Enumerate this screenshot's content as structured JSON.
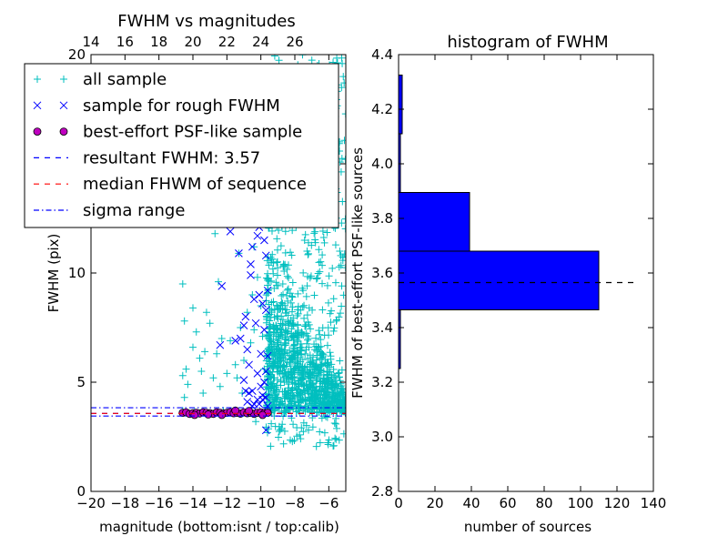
{
  "chart_data": [
    {
      "type": "scatter",
      "title": "FWHM vs magnitudes",
      "xlabel": "magnitude (bottom:isnt / top:calib)",
      "ylabel": "FWHM (pix)",
      "xlim": [
        -20,
        -5
      ],
      "ylim": [
        0,
        20
      ],
      "x_ticks": [
        -20,
        -18,
        -16,
        -14,
        -12,
        -10,
        -8,
        -6
      ],
      "x_tick_labels": [
        "−20",
        "−18",
        "−16",
        "−14",
        "−12",
        "−10",
        "−8",
        "−6"
      ],
      "y_ticks": [
        0,
        5,
        10,
        15,
        20
      ],
      "y_tick_labels": [
        "0",
        "5",
        "10",
        "15",
        "20"
      ],
      "top_x_ticks": [
        14,
        16,
        18,
        20,
        22,
        24,
        26
      ],
      "top_x_tick_labels": [
        "14",
        "16",
        "18",
        "20",
        "22",
        "24",
        "26"
      ],
      "top_x_offset": 34.0,
      "legend": {
        "position": "upper-left",
        "entries": [
          {
            "marker": "plus",
            "color": "#00bfbf",
            "label": "all sample"
          },
          {
            "marker": "x",
            "color": "#0000ff",
            "label": "sample for rough FWHM"
          },
          {
            "marker": "circle",
            "color": "#bf00bf",
            "label": "best-effort PSF-like sample"
          },
          {
            "marker": "dashed",
            "color": "#0000ff",
            "label": "resultant FWHM: 3.57"
          },
          {
            "marker": "dashed",
            "color": "#ff0000",
            "label": "median FHWM of sequence"
          },
          {
            "marker": "dashdot",
            "color": "#0000ff",
            "label": "sigma range"
          }
        ]
      },
      "hlines": [
        {
          "y": 3.57,
          "style": "dashed",
          "color": "#0000ff"
        },
        {
          "y": 3.57,
          "style": "dashed",
          "color": "#ff0000"
        },
        {
          "y": 3.83,
          "style": "dashdot",
          "color": "#0000ff"
        },
        {
          "y": 3.45,
          "style": "dashdot",
          "color": "#0000ff"
        }
      ],
      "series": [
        {
          "name": "all sample",
          "marker": "plus",
          "color": "#00bfbf",
          "x": [
            -14.6,
            -14.4,
            -14.5,
            -14.3,
            -14.0,
            -13.8,
            -13.5,
            -13.3,
            -13.0,
            -12.8,
            -12.6,
            -12.3,
            -12.0,
            -11.8,
            -11.5,
            -11.2,
            -11.0,
            -10.8,
            -10.6,
            -10.4,
            -10.2,
            -10.0,
            -9.9,
            -9.8,
            -9.6,
            -14.6,
            -13.2,
            -12.5,
            -11.8,
            -11.0,
            -14.4,
            -12.9,
            -11.9,
            -10.9,
            -10.1,
            -14.0,
            -12.7,
            -11.3,
            -10.4,
            -14.6,
            -13.9,
            -13.1,
            -12.2,
            -11.6,
            -10.7,
            -13.4,
            -11.4,
            -14.5,
            -13.6,
            -12.4,
            -11.1,
            -10.3,
            -12.0,
            -13.0,
            -10.5
          ],
          "y": [
            5.3,
            5.6,
            7.8,
            4.9,
            6.6,
            7.3,
            5.5,
            6.4,
            7.7,
            5.2,
            6.3,
            7.0,
            5.4,
            6.9,
            5.8,
            7.5,
            6.0,
            8.2,
            6.8,
            7.4,
            9.8,
            8.5,
            7.1,
            5.6,
            6.4,
            9.5,
            8.2,
            9.6,
            13.7,
            14.2,
            14.7,
            13.3,
            13.5,
            14.8,
            12.8,
            8.4,
            11.8,
            10.9,
            11.2,
            3.7,
            3.65,
            3.6,
            3.7,
            3.65,
            3.7,
            4.5,
            5.2,
            4.3,
            6.1,
            4.8,
            4.5,
            3.2,
            15.0,
            12.5,
            9.0
          ]
        },
        {
          "name": "sample for rough FWHM",
          "marker": "x",
          "color": "#0000ff",
          "x": [
            -12.3,
            -11.5,
            -11.2,
            -11.0,
            -10.8,
            -10.7,
            -10.6,
            -10.5,
            -10.4,
            -10.3,
            -10.2,
            -10.1,
            -10.0,
            -9.9,
            -9.8,
            -9.7,
            -9.6,
            -10.9,
            -10.3,
            -10.0,
            -9.8,
            -9.7,
            -11.8,
            -11.3,
            -10.6,
            -10.1,
            -9.9,
            -9.7,
            -10.5,
            -10.2,
            -12.4,
            -11.0,
            -10.7,
            -10.4,
            -9.9,
            -9.6,
            -10.8,
            -10.0,
            -9.7,
            -11.1,
            -10.3,
            -9.8,
            -10.6,
            -10.0,
            -9.7,
            -10.9,
            -10.2,
            -9.8,
            -9.6,
            -10.5,
            -10.1,
            -9.9,
            -9.7,
            -11.5,
            -10.4
          ],
          "y": [
            9.4,
            6.9,
            7.0,
            7.6,
            6.5,
            5.8,
            9.9,
            11.2,
            12.6,
            13.0,
            11.7,
            12.1,
            13.8,
            12.9,
            11.5,
            10.8,
            9.2,
            8.0,
            7.7,
            6.3,
            7.4,
            5.5,
            11.9,
            10.9,
            10.4,
            9.0,
            8.6,
            8.3,
            4.6,
            4.2,
            6.7,
            5.1,
            4.5,
            4.0,
            4.4,
            3.9,
            4.1,
            4.8,
            4.3,
            13.9,
            14.6,
            13.2,
            12.3,
            15.5,
            14.2,
            4.6,
            5.4,
            5.0,
            6.2,
            3.9,
            4.0,
            4.2,
            2.8,
            12.5,
            8.8
          ]
        },
        {
          "name": "best-effort PSF-like sample",
          "marker": "circle",
          "color": "#bf00bf",
          "x": [
            -14.6,
            -14.4,
            -14.2,
            -14.0,
            -13.8,
            -13.6,
            -13.4,
            -13.2,
            -13.0,
            -12.8,
            -12.6,
            -12.4,
            -12.2,
            -12.0,
            -11.8,
            -11.6,
            -11.4,
            -11.2,
            -11.0,
            -10.8,
            -10.6,
            -10.4,
            -10.2,
            -10.0,
            -9.8,
            -9.6,
            -13.9,
            -13.1,
            -12.3,
            -11.5,
            -10.7,
            -9.9
          ],
          "y": [
            3.6,
            3.62,
            3.55,
            3.58,
            3.6,
            3.57,
            3.62,
            3.6,
            3.58,
            3.55,
            3.62,
            3.6,
            3.57,
            3.6,
            3.63,
            3.58,
            3.6,
            3.56,
            3.62,
            3.58,
            3.6,
            3.55,
            3.6,
            3.62,
            3.58,
            3.6,
            3.5,
            3.52,
            3.5,
            3.7,
            3.68,
            3.5
          ]
        }
      ],
      "dense_cloud": {
        "series": "all sample",
        "x_range": [
          -9.7,
          -5.0
        ],
        "y_range": [
          2.0,
          20.0
        ],
        "description_shape": "dense cluster centered near magnitude -8, FWHM 3.5-10, tailing off to higher magnitudes"
      }
    },
    {
      "type": "bar",
      "orientation": "horizontal",
      "title": "histogram of FWHM",
      "xlabel": "number of sources",
      "ylabel": "FWHM of best-effort PSF-like sources",
      "xlim": [
        0,
        140
      ],
      "ylim": [
        2.8,
        4.4
      ],
      "x_ticks": [
        0,
        20,
        40,
        60,
        80,
        100,
        120,
        140
      ],
      "x_tick_labels": [
        "0",
        "20",
        "40",
        "60",
        "80",
        "100",
        "120",
        "140"
      ],
      "y_ticks": [
        2.8,
        3.0,
        3.2,
        3.4,
        3.6,
        3.8,
        4.0,
        4.2,
        4.4
      ],
      "y_tick_labels": [
        "2.8",
        "3.0",
        "3.2",
        "3.4",
        "3.6",
        "3.8",
        "4.0",
        "4.2",
        "4.4"
      ],
      "bar_color": "#0000ff",
      "bins": [
        {
          "lo": 3.25,
          "hi": 3.465,
          "count": 1
        },
        {
          "lo": 3.465,
          "hi": 3.68,
          "count": 110
        },
        {
          "lo": 3.68,
          "hi": 3.895,
          "count": 39
        },
        {
          "lo": 3.895,
          "hi": 4.11,
          "count": 1
        },
        {
          "lo": 4.11,
          "hi": 4.325,
          "count": 2
        }
      ],
      "hline": {
        "y": 3.565,
        "x_end": 130,
        "style": "dashed",
        "color": "#000000"
      }
    }
  ]
}
